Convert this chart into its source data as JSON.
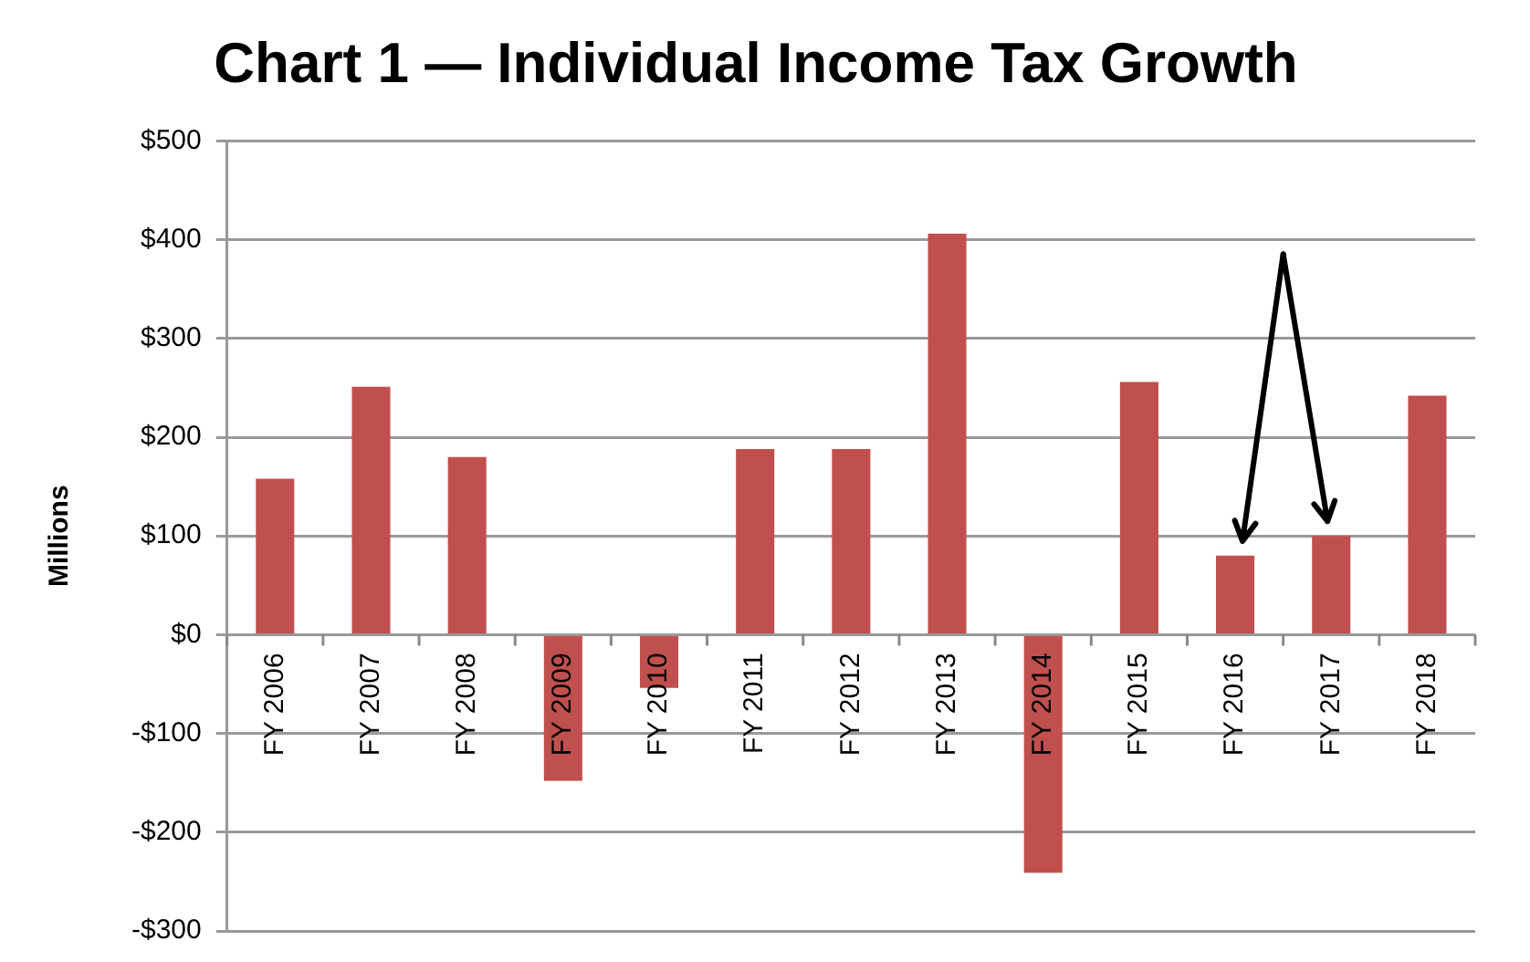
{
  "chart_data": {
    "type": "bar",
    "title": "Chart 1 — Individual Income Tax Growth",
    "ylabel": "Millions",
    "categories": [
      "FY 2006",
      "FY 2007",
      "FY 2008",
      "FY 2009",
      "FY 2010",
      "FY 2011",
      "FY 2012",
      "FY 2013",
      "FY 2014",
      "FY 2015",
      "FY 2016",
      "FY 2017",
      "FY 2018"
    ],
    "values": [
      158,
      251,
      180,
      -148,
      -54,
      188,
      188,
      406,
      -241,
      256,
      80,
      100,
      242
    ],
    "color": "#c0504d",
    "ylim": [
      -300,
      500
    ],
    "yticks": [
      {
        "value": -300,
        "label": "-$300"
      },
      {
        "value": -200,
        "label": "-$200"
      },
      {
        "value": -100,
        "label": "-$100"
      },
      {
        "value": 0,
        "label": "$0"
      },
      {
        "value": 100,
        "label": "$100"
      },
      {
        "value": 200,
        "label": "$200"
      },
      {
        "value": 300,
        "label": "$300"
      },
      {
        "value": 400,
        "label": "$400"
      },
      {
        "value": 500,
        "label": "$500"
      }
    ],
    "grid": "y",
    "legend": false
  }
}
